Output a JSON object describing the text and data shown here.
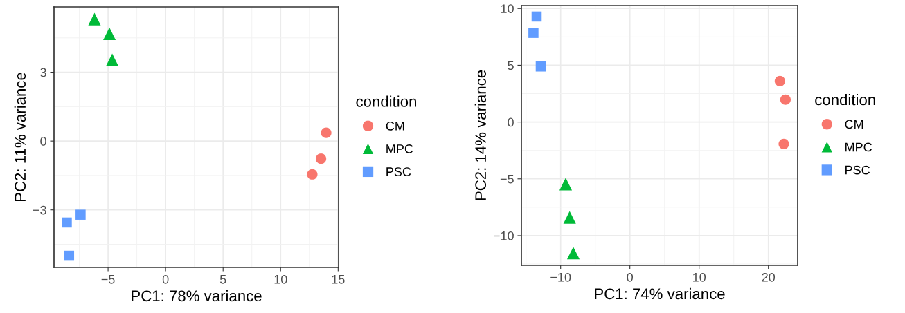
{
  "chart_data": [
    {
      "type": "scatter",
      "xlabel": "PC1: 78% variance",
      "ylabel": "PC2: 11% variance",
      "legend_title": "condition",
      "legend": "right",
      "grid": true,
      "xlim": [
        -9.7,
        15.04
      ],
      "ylim": [
        -5.51,
        5.85
      ],
      "xticks": [
        {
          "value": -5,
          "label": "−5"
        },
        0,
        5,
        10,
        15
      ],
      "yticks": [
        {
          "value": -3,
          "label": "−3"
        },
        0,
        3
      ],
      "series": [
        {
          "name": "CM",
          "color": "#f8766d",
          "marker": "circle",
          "x": [
            13.96,
            13.51,
            12.75
          ],
          "values": [
            0.36,
            -0.77,
            -1.45
          ]
        },
        {
          "name": "MPC",
          "color": "#00ba38",
          "marker": "triangle",
          "x": [
            -6.18,
            -4.88,
            -4.64
          ],
          "values": [
            5.32,
            4.68,
            3.54
          ]
        },
        {
          "name": "PSC",
          "color": "#619cff",
          "marker": "square",
          "x": [
            -8.59,
            -7.39,
            -8.39
          ],
          "values": [
            -3.55,
            -3.21,
            -5.0
          ]
        }
      ]
    },
    {
      "type": "scatter",
      "xlabel": "PC1: 74% variance",
      "ylabel": "PC2: 14% variance",
      "legend_title": "condition",
      "legend": "right",
      "grid": true,
      "xlim": [
        -15.67,
        24.23
      ],
      "ylim": [
        -12.62,
        10.26
      ],
      "xticks": [
        {
          "value": -10,
          "label": "−10"
        },
        0,
        10,
        20
      ],
      "yticks": [
        {
          "value": -10,
          "label": "−10"
        },
        {
          "value": -5,
          "label": "−5"
        },
        0,
        5,
        10
      ],
      "series": [
        {
          "name": "CM",
          "color": "#f8766d",
          "marker": "circle",
          "x": [
            21.67,
            22.47,
            22.23
          ],
          "values": [
            3.61,
            1.97,
            -1.93
          ]
        },
        {
          "name": "MPC",
          "color": "#00ba38",
          "marker": "triangle",
          "x": [
            -9.27,
            -8.7,
            -8.17
          ],
          "values": [
            -5.46,
            -8.4,
            -11.54
          ]
        },
        {
          "name": "PSC",
          "color": "#619cff",
          "marker": "square",
          "x": [
            -13.47,
            -13.93,
            -12.87
          ],
          "values": [
            9.29,
            7.85,
            4.89
          ]
        }
      ]
    }
  ]
}
